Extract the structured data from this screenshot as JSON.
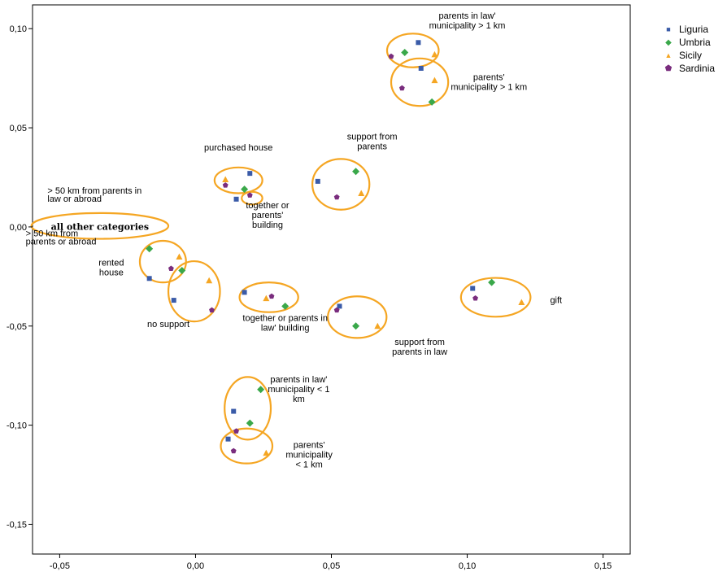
{
  "chart_data": {
    "type": "scatter",
    "xlim": [
      -0.06,
      0.16
    ],
    "ylim": [
      -0.165,
      0.112
    ],
    "xticks": [
      -0.05,
      0.0,
      0.05,
      0.1,
      0.15
    ],
    "yticks": [
      -0.15,
      -0.1,
      -0.05,
      0.0,
      0.05,
      0.1
    ],
    "xtick_labels": [
      "-0,05",
      "0,00",
      "0,05",
      "0,10",
      "0,15"
    ],
    "ytick_labels": [
      "-0,15",
      "-0,10",
      "-0,05",
      "0,00",
      "0,05",
      "0,10"
    ],
    "grid": false,
    "legend_position": "top-right",
    "series": [
      {
        "name": "Liguria",
        "color": "#3a5ba8",
        "marker": "square",
        "points": [
          [
            0.082,
            0.093
          ],
          [
            0.083,
            0.08
          ],
          [
            0.02,
            0.027
          ],
          [
            0.015,
            0.014
          ],
          [
            0.045,
            0.023
          ],
          [
            -0.017,
            -0.026
          ],
          [
            -0.008,
            -0.037
          ],
          [
            0.018,
            -0.033
          ],
          [
            0.053,
            -0.04
          ],
          [
            0.102,
            -0.031
          ],
          [
            0.014,
            -0.093
          ],
          [
            0.012,
            -0.107
          ]
        ]
      },
      {
        "name": "Umbria",
        "color": "#3aa84a",
        "marker": "diamond",
        "points": [
          [
            0.077,
            0.088
          ],
          [
            0.087,
            0.063
          ],
          [
            0.059,
            0.028
          ],
          [
            0.018,
            0.019
          ],
          [
            -0.017,
            -0.011
          ],
          [
            -0.005,
            -0.022
          ],
          [
            0.033,
            -0.04
          ],
          [
            0.059,
            -0.05
          ],
          [
            0.109,
            -0.028
          ],
          [
            0.024,
            -0.082
          ],
          [
            0.02,
            -0.099
          ]
        ]
      },
      {
        "name": "Sicily",
        "color": "#f5a623",
        "marker": "triangle",
        "points": [
          [
            0.088,
            0.087
          ],
          [
            0.088,
            0.074
          ],
          [
            0.061,
            0.017
          ],
          [
            0.011,
            0.024
          ],
          [
            -0.006,
            -0.015
          ],
          [
            0.005,
            -0.027
          ],
          [
            0.026,
            -0.036
          ],
          [
            0.067,
            -0.05
          ],
          [
            0.12,
            -0.038
          ],
          [
            0.026,
            -0.114
          ]
        ]
      },
      {
        "name": "Sardinia",
        "color": "#7a2d7e",
        "marker": "pentagon",
        "points": [
          [
            0.072,
            0.086
          ],
          [
            0.076,
            0.07
          ],
          [
            0.052,
            0.015
          ],
          [
            0.011,
            0.021
          ],
          [
            0.02,
            0.016
          ],
          [
            -0.009,
            -0.021
          ],
          [
            0.006,
            -0.042
          ],
          [
            0.028,
            -0.035
          ],
          [
            0.052,
            -0.042
          ],
          [
            0.103,
            -0.036
          ],
          [
            0.015,
            -0.103
          ],
          [
            0.014,
            -0.113
          ]
        ]
      }
    ],
    "clusters": [
      {
        "label": "parents in law' municipality > 1 km",
        "cx": 0.08,
        "cy": 0.089,
        "rx": 0.0095,
        "ry": 0.0085
      },
      {
        "label": "parents' municipality > 1 km",
        "cx": 0.0825,
        "cy": 0.073,
        "rx": 0.0105,
        "ry": 0.012
      },
      {
        "label": "support from parents",
        "cx": 0.0535,
        "cy": 0.0215,
        "rx": 0.0105,
        "ry": 0.0128
      },
      {
        "label": "purchased house",
        "cx": 0.0158,
        "cy": 0.0235,
        "rx": 0.0088,
        "ry": 0.0065
      },
      {
        "label": "together or parents' building",
        "cx": 0.0208,
        "cy": 0.0145,
        "rx": 0.0038,
        "ry": 0.0032
      },
      {
        "label": "all other categories",
        "cx": -0.0352,
        "cy": 0.0005,
        "rx": 0.0252,
        "ry": 0.0065
      },
      {
        "label": "rented house",
        "cx": -0.012,
        "cy": -0.0175,
        "rx": 0.0085,
        "ry": 0.0105
      },
      {
        "label": "no support",
        "cx": -0.0005,
        "cy": -0.0325,
        "rx": 0.0095,
        "ry": 0.0152
      },
      {
        "label": "together or parents in law' building",
        "cx": 0.027,
        "cy": -0.0355,
        "rx": 0.0108,
        "ry": 0.0075
      },
      {
        "label": "support from parents in law",
        "cx": 0.0595,
        "cy": -0.0455,
        "rx": 0.0108,
        "ry": 0.0105
      },
      {
        "label": "gift",
        "cx": 0.1105,
        "cy": -0.0355,
        "rx": 0.0128,
        "ry": 0.0098
      },
      {
        "label": "parents in law' municipality < 1 km",
        "cx": 0.0192,
        "cy": -0.0915,
        "rx": 0.0085,
        "ry": 0.0158
      },
      {
        "label": "parents' municipality < 1 km",
        "cx": 0.0188,
        "cy": -0.1105,
        "rx": 0.0095,
        "ry": 0.0088
      }
    ],
    "annotations": [
      {
        "lines": [
          "parents in law'",
          "municipality > 1 km"
        ],
        "x": 0.1,
        "y": 0.105,
        "anchor": "middle",
        "style": "normal"
      },
      {
        "lines": [
          "parents'",
          "municipality > 1 km"
        ],
        "x": 0.108,
        "y": 0.074,
        "anchor": "middle",
        "style": "normal"
      },
      {
        "lines": [
          "support from",
          "parents"
        ],
        "x": 0.065,
        "y": 0.044,
        "anchor": "middle",
        "style": "normal"
      },
      {
        "lines": [
          "purchased house"
        ],
        "x": 0.0158,
        "y": 0.0385,
        "anchor": "middle",
        "style": "normal"
      },
      {
        "lines": [
          "> 50 km from parents in",
          "law or abroad"
        ],
        "x": -0.0545,
        "y": 0.0168,
        "anchor": "start",
        "style": "small"
      },
      {
        "lines": [
          "together or",
          "parents'",
          "building"
        ],
        "x": 0.0265,
        "y": 0.0095,
        "anchor": "middle",
        "style": "normal"
      },
      {
        "lines": [
          "all other categories"
        ],
        "x": -0.0352,
        "y": -0.0015,
        "anchor": "middle",
        "style": "bold"
      },
      {
        "lines": [
          "> 50 km from",
          "parents or abroad"
        ],
        "x": -0.0625,
        "y": -0.0048,
        "anchor": "start",
        "style": "small"
      },
      {
        "lines": [
          "rented",
          "house"
        ],
        "x": -0.031,
        "y": -0.0195,
        "anchor": "middle",
        "style": "normal"
      },
      {
        "lines": [
          "no support"
        ],
        "x": -0.01,
        "y": -0.0505,
        "anchor": "middle",
        "style": "normal"
      },
      {
        "lines": [
          "together or parents in",
          "law' building"
        ],
        "x": 0.033,
        "y": -0.0475,
        "anchor": "middle",
        "style": "normal"
      },
      {
        "lines": [
          "support from",
          "parents in law"
        ],
        "x": 0.0825,
        "y": -0.0595,
        "anchor": "middle",
        "style": "normal"
      },
      {
        "lines": [
          "gift"
        ],
        "x": 0.1305,
        "y": -0.0383,
        "anchor": "start",
        "style": "normal"
      },
      {
        "lines": [
          "parents in law'",
          "municipality < 1",
          "km"
        ],
        "x": 0.038,
        "y": -0.0785,
        "anchor": "middle",
        "style": "normal"
      },
      {
        "lines": [
          "parents'",
          "municipality",
          "< 1 km"
        ],
        "x": 0.0418,
        "y": -0.1115,
        "anchor": "middle",
        "style": "normal"
      }
    ],
    "cluster_color": "#f5a623"
  },
  "legend": {
    "items": [
      {
        "label": "Liguria",
        "color": "#3a5ba8",
        "symbol": "■"
      },
      {
        "label": "Umbria",
        "color": "#3aa84a",
        "symbol": "◆"
      },
      {
        "label": "Sicily",
        "color": "#f5a623",
        "symbol": "▲"
      },
      {
        "label": "Sardinia",
        "color": "#7a2d7e",
        "symbol": "⬟"
      }
    ]
  }
}
